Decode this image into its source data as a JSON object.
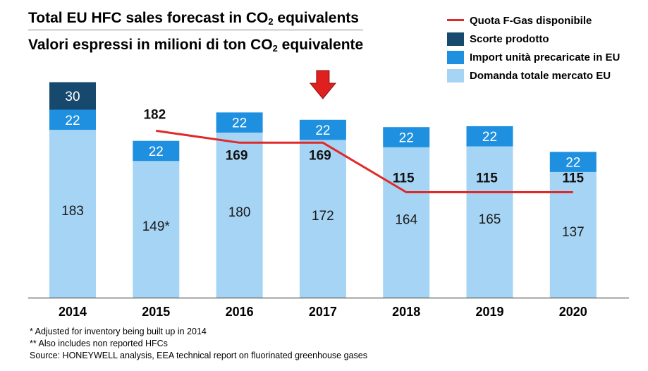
{
  "title": {
    "pre": "Total EU HFC sales forecast in CO",
    "sub": "2",
    "post": " equivalents"
  },
  "subtitle": {
    "pre": "Valori espressi in milioni di ton CO",
    "sub": "2",
    "post": " equivalente"
  },
  "chart_data": {
    "type": "bar",
    "stacked": true,
    "categories": [
      "2014",
      "2015",
      "2016",
      "2017",
      "2018",
      "2019",
      "2020"
    ],
    "series": [
      {
        "name": "Domanda totale mercato EU",
        "color": "#a6d4f4",
        "values": [
          183,
          149,
          180,
          172,
          164,
          165,
          137
        ],
        "labels": [
          "183",
          "149*",
          "180",
          "172",
          "164",
          "165",
          "137"
        ]
      },
      {
        "name": "Import unità precaricate in EU",
        "color": "#1f90e0",
        "values": [
          22,
          22,
          22,
          22,
          22,
          22,
          22
        ],
        "labels": [
          "22",
          "22",
          "22",
          "22",
          "22",
          "22",
          "22"
        ]
      },
      {
        "name": "Scorte prodotto",
        "color": "#17496e",
        "values": [
          30,
          0,
          0,
          0,
          0,
          0,
          0
        ],
        "labels": [
          "30",
          "",
          "",
          "",
          "",
          "",
          ""
        ]
      }
    ],
    "line": {
      "name": "Quota F-Gas disponibile",
      "color": "#e02a2a",
      "categories": [
        "2015",
        "2016",
        "2017",
        "2018",
        "2019",
        "2020"
      ],
      "values": [
        182,
        169,
        169,
        115,
        115,
        115
      ]
    },
    "highlight": {
      "category": "2017",
      "marker": "down-arrow",
      "color": "#e0201e"
    },
    "ylim": [
      0,
      235
    ],
    "xlabel": "",
    "ylabel": ""
  },
  "legend": [
    {
      "type": "line",
      "label": "Quota F-Gas disponibile",
      "color": "#e02a2a"
    },
    {
      "type": "box",
      "label": "Scorte prodotto",
      "color": "#17496e"
    },
    {
      "type": "box",
      "label": "Import unità precaricate in EU",
      "color": "#1f90e0"
    },
    {
      "type": "box",
      "label": "Domanda totale mercato EU",
      "color": "#a6d4f4"
    }
  ],
  "footnotes": [
    "* Adjusted for inventory being built up in 2014",
    "** Also includes non reported HFCs",
    "Source: HONEYWELL analysis, EEA technical report on fluorinated greenhouse gases"
  ]
}
